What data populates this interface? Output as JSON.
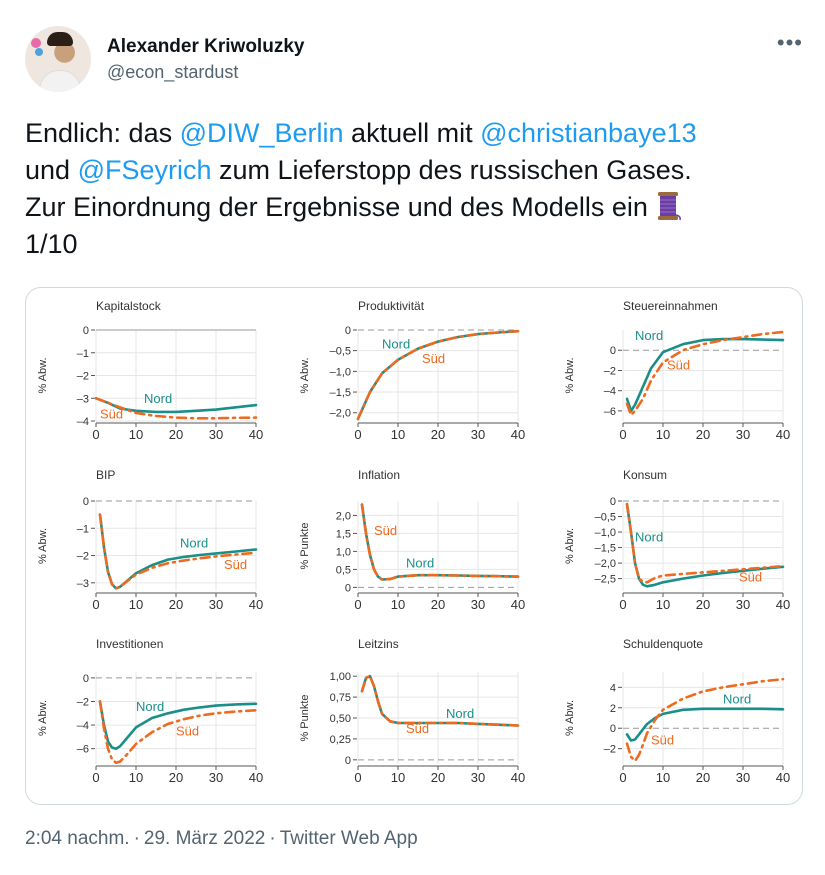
{
  "author": {
    "name": "Alexander Kriwoluzky",
    "handle": "@econ_stardust"
  },
  "tweet": {
    "t1": "Endlich: das ",
    "m1": "@DIW_Berlin",
    "t2": " aktuell mit ",
    "m2": "@christianbaye13",
    "t3": "und ",
    "m3": "@FSeyrich",
    "t4": " zum Lieferstopp des russischen Gases.",
    "t5": "Zur Einordnung der Ergebnisse und des Modells ein",
    "t6": "1/10"
  },
  "footer": {
    "time": "2:04 nachm.",
    "date": "29. März 2022",
    "source": "Twitter Web App"
  },
  "colors": {
    "nord": "#1a8f8a",
    "sued": "#ee6a1f",
    "mention": "#1d9bf0"
  },
  "chart_data": [
    {
      "title": "Kapitalstock",
      "ylabel": "% Abw.",
      "type": "line",
      "ylim": [
        -4,
        0
      ],
      "yticks": [
        0,
        -1,
        -2,
        -3,
        -4
      ],
      "ytick_labels": [
        "0",
        "–1",
        "–2",
        "–3",
        "–4"
      ],
      "xticks": [
        0,
        10,
        20,
        30,
        40
      ],
      "zero_style": "solid",
      "nord_label": "Nord",
      "sued_label": "Süd",
      "nord_label_pos": [
        12,
        -3.2
      ],
      "sued_label_pos": [
        1,
        -3.9
      ],
      "series": [
        {
          "name": "Nord",
          "x": [
            0,
            3,
            6,
            10,
            15,
            20,
            25,
            30,
            35,
            40
          ],
          "y": [
            -3.0,
            -3.2,
            -3.45,
            -3.55,
            -3.6,
            -3.6,
            -3.55,
            -3.5,
            -3.4,
            -3.3
          ]
        },
        {
          "name": "Süd",
          "x": [
            0,
            3,
            6,
            10,
            15,
            20,
            25,
            30,
            35,
            40
          ],
          "y": [
            -3.0,
            -3.2,
            -3.4,
            -3.65,
            -3.78,
            -3.85,
            -3.88,
            -3.88,
            -3.86,
            -3.85
          ]
        }
      ]
    },
    {
      "title": "Produktivität",
      "ylabel": "% Abw.",
      "type": "line",
      "ylim": [
        -2.2,
        0
      ],
      "yticks": [
        0,
        -0.5,
        -1.0,
        -1.5,
        -2.0
      ],
      "ytick_labels": [
        "0",
        "–0,5",
        "–1,0",
        "–1,5",
        "–2,0"
      ],
      "xticks": [
        0,
        10,
        20,
        30,
        40
      ],
      "zero_style": "dashed",
      "nord_label": "Nord",
      "sued_label": "Süd",
      "nord_label_pos": [
        6,
        -0.45
      ],
      "sued_label_pos": [
        16,
        -0.8
      ],
      "series": [
        {
          "name": "Nord",
          "x": [
            0,
            3,
            6,
            10,
            15,
            20,
            25,
            30,
            35,
            40
          ],
          "y": [
            -2.15,
            -1.5,
            -1.05,
            -0.72,
            -0.45,
            -0.28,
            -0.17,
            -0.1,
            -0.06,
            -0.03
          ]
        },
        {
          "name": "Süd",
          "x": [
            0,
            3,
            6,
            10,
            15,
            20,
            25,
            30,
            35,
            40
          ],
          "y": [
            -2.15,
            -1.5,
            -1.05,
            -0.72,
            -0.45,
            -0.28,
            -0.17,
            -0.1,
            -0.06,
            -0.03
          ]
        }
      ]
    },
    {
      "title": "Steuereinnahmen",
      "ylabel": "% Abw.",
      "type": "line",
      "ylim": [
        -7,
        2
      ],
      "yticks": [
        0,
        -2,
        -4,
        -6
      ],
      "ytick_labels": [
        "0",
        "–2",
        "–4",
        "–6"
      ],
      "xticks": [
        0,
        10,
        20,
        30,
        40
      ],
      "zero_style": "dashed",
      "nord_label": "Nord",
      "sued_label": "Süd",
      "nord_label_pos": [
        3,
        1.0
      ],
      "sued_label_pos": [
        11,
        -1.9
      ],
      "series": [
        {
          "name": "Nord",
          "x": [
            1,
            2,
            3,
            5,
            7,
            10,
            15,
            20,
            25,
            30,
            35,
            40
          ],
          "y": [
            -4.8,
            -6.0,
            -5.4,
            -3.6,
            -1.8,
            -0.2,
            0.6,
            1.0,
            1.1,
            1.1,
            1.05,
            1.0
          ]
        },
        {
          "name": "Süd",
          "x": [
            1,
            2,
            3,
            5,
            7,
            10,
            15,
            20,
            25,
            30,
            35,
            40
          ],
          "y": [
            -5.3,
            -6.4,
            -6.0,
            -4.8,
            -3.0,
            -1.2,
            0.0,
            0.6,
            1.0,
            1.3,
            1.6,
            1.8
          ]
        }
      ]
    },
    {
      "title": "BIP",
      "ylabel": "% Abw.",
      "type": "line",
      "ylim": [
        -3.3,
        0
      ],
      "yticks": [
        0,
        -1,
        -2,
        -3
      ],
      "ytick_labels": [
        "0",
        "–1",
        "–2",
        "–3"
      ],
      "xticks": [
        0,
        10,
        20,
        30,
        40
      ],
      "zero_style": "dashed",
      "nord_label": "Nord",
      "sued_label": "Süd",
      "nord_label_pos": [
        21,
        -1.7
      ],
      "sued_label_pos": [
        32,
        -2.5
      ],
      "series": [
        {
          "name": "Nord",
          "x": [
            1,
            2,
            3,
            4,
            5,
            6,
            8,
            10,
            14,
            18,
            22,
            26,
            30,
            35,
            40
          ],
          "y": [
            -0.5,
            -1.7,
            -2.6,
            -3.05,
            -3.2,
            -3.15,
            -2.9,
            -2.65,
            -2.35,
            -2.15,
            -2.05,
            -1.98,
            -1.92,
            -1.85,
            -1.78
          ]
        },
        {
          "name": "Süd",
          "x": [
            1,
            2,
            3,
            4,
            5,
            6,
            8,
            10,
            14,
            18,
            22,
            26,
            30,
            35,
            40
          ],
          "y": [
            -0.5,
            -1.7,
            -2.6,
            -3.05,
            -3.2,
            -3.15,
            -2.92,
            -2.7,
            -2.45,
            -2.28,
            -2.18,
            -2.1,
            -2.03,
            -1.96,
            -1.9
          ]
        }
      ]
    },
    {
      "title": "Inflation",
      "ylabel": "% Punkte",
      "type": "line",
      "ylim": [
        -0.1,
        2.4
      ],
      "yticks": [
        0,
        0.5,
        1.0,
        1.5,
        2.0
      ],
      "ytick_labels": [
        "0",
        "0,5",
        "1,0",
        "1,5",
        "2,0"
      ],
      "xticks": [
        0,
        10,
        20,
        30,
        40
      ],
      "zero_style": "dashed",
      "nord_label": "Nord",
      "sued_label": "Süd",
      "nord_label_pos": [
        12,
        0.55
      ],
      "sued_label_pos": [
        4,
        1.45
      ],
      "series": [
        {
          "name": "Nord",
          "x": [
            1,
            2,
            3,
            4,
            5,
            6,
            8,
            10,
            15,
            20,
            25,
            30,
            35,
            40
          ],
          "y": [
            2.3,
            1.5,
            0.9,
            0.5,
            0.3,
            0.22,
            0.23,
            0.3,
            0.34,
            0.34,
            0.33,
            0.32,
            0.31,
            0.3
          ]
        },
        {
          "name": "Süd",
          "x": [
            1,
            2,
            3,
            4,
            5,
            6,
            8,
            10,
            15,
            20,
            25,
            30,
            35,
            40
          ],
          "y": [
            2.3,
            1.5,
            0.9,
            0.5,
            0.3,
            0.22,
            0.23,
            0.3,
            0.34,
            0.34,
            0.33,
            0.32,
            0.31,
            0.3
          ]
        }
      ]
    },
    {
      "title": "Konsum",
      "ylabel": "% Abw.",
      "type": "line",
      "ylim": [
        -2.9,
        0
      ],
      "yticks": [
        0,
        -0.5,
        -1.0,
        -1.5,
        -2.0,
        -2.5
      ],
      "ytick_labels": [
        "0",
        "–0,5",
        "–1,0",
        "–1,5",
        "–2,0",
        "–2,5"
      ],
      "xticks": [
        0,
        10,
        20,
        30,
        40
      ],
      "zero_style": "dashed",
      "nord_label": "Nord",
      "sued_label": "Süd",
      "nord_label_pos": [
        3,
        -1.3
      ],
      "sued_label_pos": [
        29,
        -2.6
      ],
      "series": [
        {
          "name": "Nord",
          "x": [
            1,
            2,
            3,
            4,
            5,
            6,
            8,
            10,
            15,
            20,
            25,
            30,
            35,
            40
          ],
          "y": [
            -0.1,
            -1.0,
            -2.0,
            -2.5,
            -2.7,
            -2.75,
            -2.7,
            -2.62,
            -2.5,
            -2.4,
            -2.32,
            -2.25,
            -2.18,
            -2.12
          ]
        },
        {
          "name": "Süd",
          "x": [
            1,
            2,
            3,
            4,
            5,
            6,
            8,
            10,
            15,
            20,
            25,
            30,
            35,
            40
          ],
          "y": [
            -0.1,
            -1.0,
            -2.0,
            -2.5,
            -2.6,
            -2.62,
            -2.48,
            -2.4,
            -2.35,
            -2.3,
            -2.25,
            -2.2,
            -2.15,
            -2.1
          ]
        }
      ]
    },
    {
      "title": "Investitionen",
      "ylabel": "% Abw.",
      "type": "line",
      "ylim": [
        -7.3,
        0.5
      ],
      "yticks": [
        0,
        -2,
        -4,
        -6
      ],
      "ytick_labels": [
        "0",
        "–2",
        "–4",
        "–6"
      ],
      "xticks": [
        0,
        10,
        20,
        30,
        40
      ],
      "zero_style": "dashed",
      "nord_label": "Nord",
      "sued_label": "Süd",
      "nord_label_pos": [
        10,
        -2.8
      ],
      "sued_label_pos": [
        20,
        -4.9
      ],
      "series": [
        {
          "name": "Nord",
          "x": [
            1,
            2,
            3,
            4,
            5,
            6,
            8,
            10,
            14,
            18,
            22,
            26,
            30,
            35,
            40
          ],
          "y": [
            -2.0,
            -4.0,
            -5.4,
            -5.9,
            -6.0,
            -5.8,
            -5.0,
            -4.2,
            -3.4,
            -3.0,
            -2.7,
            -2.5,
            -2.35,
            -2.25,
            -2.2
          ]
        },
        {
          "name": "Süd",
          "x": [
            1,
            2,
            3,
            4,
            5,
            6,
            8,
            10,
            14,
            18,
            22,
            26,
            30,
            35,
            40
          ],
          "y": [
            -2.0,
            -4.3,
            -6.0,
            -6.9,
            -7.2,
            -7.1,
            -6.4,
            -5.6,
            -4.6,
            -3.9,
            -3.5,
            -3.2,
            -3.0,
            -2.85,
            -2.75
          ]
        }
      ]
    },
    {
      "title": "Leitzins",
      "ylabel": "% Punkte",
      "type": "line",
      "ylim": [
        -0.05,
        1.05
      ],
      "yticks": [
        0,
        0.25,
        0.5,
        0.75,
        1.0
      ],
      "ytick_labels": [
        "0",
        "0,25",
        "0,50",
        "0,75",
        "1,00"
      ],
      "xticks": [
        0,
        10,
        20,
        30,
        40
      ],
      "zero_style": "dashed",
      "nord_label": "Nord",
      "sued_label": "Süd",
      "nord_label_pos": [
        22,
        0.5
      ],
      "sued_label_pos": [
        12,
        0.32
      ],
      "series": [
        {
          "name": "Nord",
          "x": [
            1,
            2,
            3,
            4,
            5,
            6,
            8,
            10,
            15,
            20,
            25,
            30,
            35,
            40
          ],
          "y": [
            0.82,
            0.98,
            1.0,
            0.88,
            0.7,
            0.55,
            0.46,
            0.44,
            0.44,
            0.44,
            0.44,
            0.43,
            0.42,
            0.41
          ]
        },
        {
          "name": "Süd",
          "x": [
            1,
            2,
            3,
            4,
            5,
            6,
            8,
            10,
            15,
            20,
            25,
            30,
            35,
            40
          ],
          "y": [
            0.82,
            0.98,
            1.0,
            0.88,
            0.7,
            0.55,
            0.46,
            0.44,
            0.44,
            0.44,
            0.44,
            0.43,
            0.42,
            0.41
          ]
        }
      ]
    },
    {
      "title": "Schuldenquote",
      "ylabel": "% Abw.",
      "type": "line",
      "ylim": [
        -3.5,
        5.5
      ],
      "yticks": [
        4,
        2,
        0,
        -2
      ],
      "ytick_labels": [
        "4",
        "2",
        "0",
        "–2"
      ],
      "xticks": [
        0,
        10,
        20,
        30,
        40
      ],
      "zero_style": "dashed",
      "nord_label": "Nord",
      "sued_label": "Süd",
      "nord_label_pos": [
        25,
        2.4
      ],
      "sued_label_pos": [
        7,
        -1.6
      ],
      "series": [
        {
          "name": "Nord",
          "x": [
            1,
            2,
            3,
            4,
            5,
            6,
            8,
            10,
            15,
            20,
            25,
            30,
            35,
            40
          ],
          "y": [
            -0.6,
            -1.2,
            -1.1,
            -0.6,
            -0.1,
            0.4,
            1.0,
            1.4,
            1.8,
            1.9,
            1.9,
            1.9,
            1.9,
            1.85
          ]
        },
        {
          "name": "Süd",
          "x": [
            1,
            2,
            3,
            4,
            5,
            6,
            8,
            10,
            15,
            20,
            25,
            30,
            35,
            40
          ],
          "y": [
            -1.5,
            -2.8,
            -3.2,
            -2.6,
            -1.6,
            -0.5,
            0.8,
            1.8,
            2.9,
            3.6,
            4.0,
            4.3,
            4.6,
            4.8
          ]
        }
      ]
    }
  ]
}
